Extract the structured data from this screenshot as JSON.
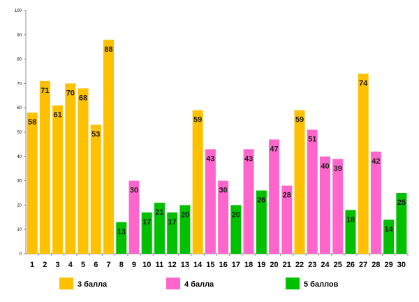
{
  "chart_data": {
    "type": "bar",
    "title": "",
    "xlabel": "",
    "ylabel": "",
    "ylim": [
      0,
      100
    ],
    "yticks": [
      0,
      10,
      20,
      30,
      40,
      50,
      60,
      70,
      80,
      90,
      100
    ],
    "grid": false,
    "categories": [
      "1",
      "2",
      "3",
      "4",
      "5",
      "6",
      "7",
      "8",
      "9",
      "10",
      "11",
      "12",
      "13",
      "14",
      "15",
      "16",
      "17",
      "18",
      "19",
      "20",
      "21",
      "22",
      "23",
      "24",
      "25",
      "26",
      "27",
      "28",
      "29",
      "30"
    ],
    "values": [
      58,
      71,
      61,
      70,
      68,
      53,
      88,
      13,
      30,
      17,
      21,
      17,
      20,
      59,
      43,
      30,
      20,
      43,
      26,
      47,
      28,
      59,
      51,
      40,
      39,
      18,
      74,
      42,
      14,
      25
    ],
    "groups": [
      0,
      0,
      0,
      0,
      0,
      0,
      0,
      2,
      1,
      2,
      2,
      2,
      2,
      0,
      1,
      1,
      2,
      1,
      2,
      1,
      1,
      0,
      1,
      1,
      1,
      2,
      0,
      1,
      2,
      2
    ],
    "legend": {
      "placement": "bottom",
      "entries": [
        {
          "label": "3 балла",
          "color": "#FFC000"
        },
        {
          "label": "4 балла",
          "color": "#FF66CC"
        },
        {
          "label": "5 баллов",
          "color": "#00C000"
        }
      ]
    }
  }
}
